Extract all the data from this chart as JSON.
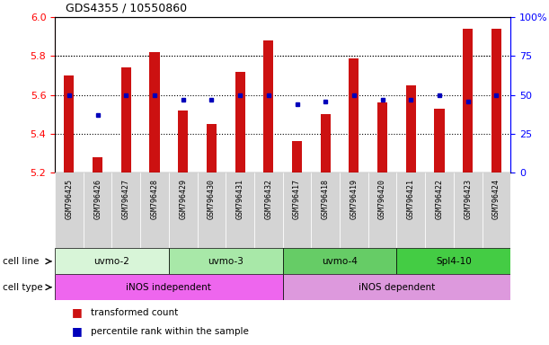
{
  "title": "GDS4355 / 10550860",
  "samples": [
    "GSM796425",
    "GSM796426",
    "GSM796427",
    "GSM796428",
    "GSM796429",
    "GSM796430",
    "GSM796431",
    "GSM796432",
    "GSM796417",
    "GSM796418",
    "GSM796419",
    "GSM796420",
    "GSM796421",
    "GSM796422",
    "GSM796423",
    "GSM796424"
  ],
  "transformed_count": [
    5.7,
    5.28,
    5.74,
    5.82,
    5.52,
    5.45,
    5.72,
    5.88,
    5.36,
    5.5,
    5.79,
    5.56,
    5.65,
    5.53,
    5.94,
    5.94
  ],
  "percentile_rank": [
    50,
    37,
    50,
    50,
    47,
    47,
    50,
    50,
    44,
    46,
    50,
    47,
    47,
    50,
    46,
    50
  ],
  "ylim_left": [
    5.2,
    6.0
  ],
  "ylim_right": [
    0,
    100
  ],
  "yticks_left": [
    5.2,
    5.4,
    5.6,
    5.8,
    6.0
  ],
  "yticks_right": [
    0,
    25,
    50,
    75,
    100
  ],
  "cell_lines": [
    {
      "label": "uvmo-2",
      "start": 0,
      "end": 4,
      "color": "#d8f5d8"
    },
    {
      "label": "uvmo-3",
      "start": 4,
      "end": 8,
      "color": "#a8e8a8"
    },
    {
      "label": "uvmo-4",
      "start": 8,
      "end": 12,
      "color": "#66cc66"
    },
    {
      "label": "Spl4-10",
      "start": 12,
      "end": 16,
      "color": "#44cc44"
    }
  ],
  "cell_types": [
    {
      "label": "iNOS independent",
      "start": 0,
      "end": 8,
      "color": "#ee66ee"
    },
    {
      "label": "iNOS dependent",
      "start": 8,
      "end": 16,
      "color": "#dd99dd"
    }
  ],
  "bar_color": "#cc1111",
  "dot_color": "#0000bb",
  "legend_bar_label": "transformed count",
  "legend_dot_label": "percentile rank within the sample",
  "background_color": "#ffffff"
}
